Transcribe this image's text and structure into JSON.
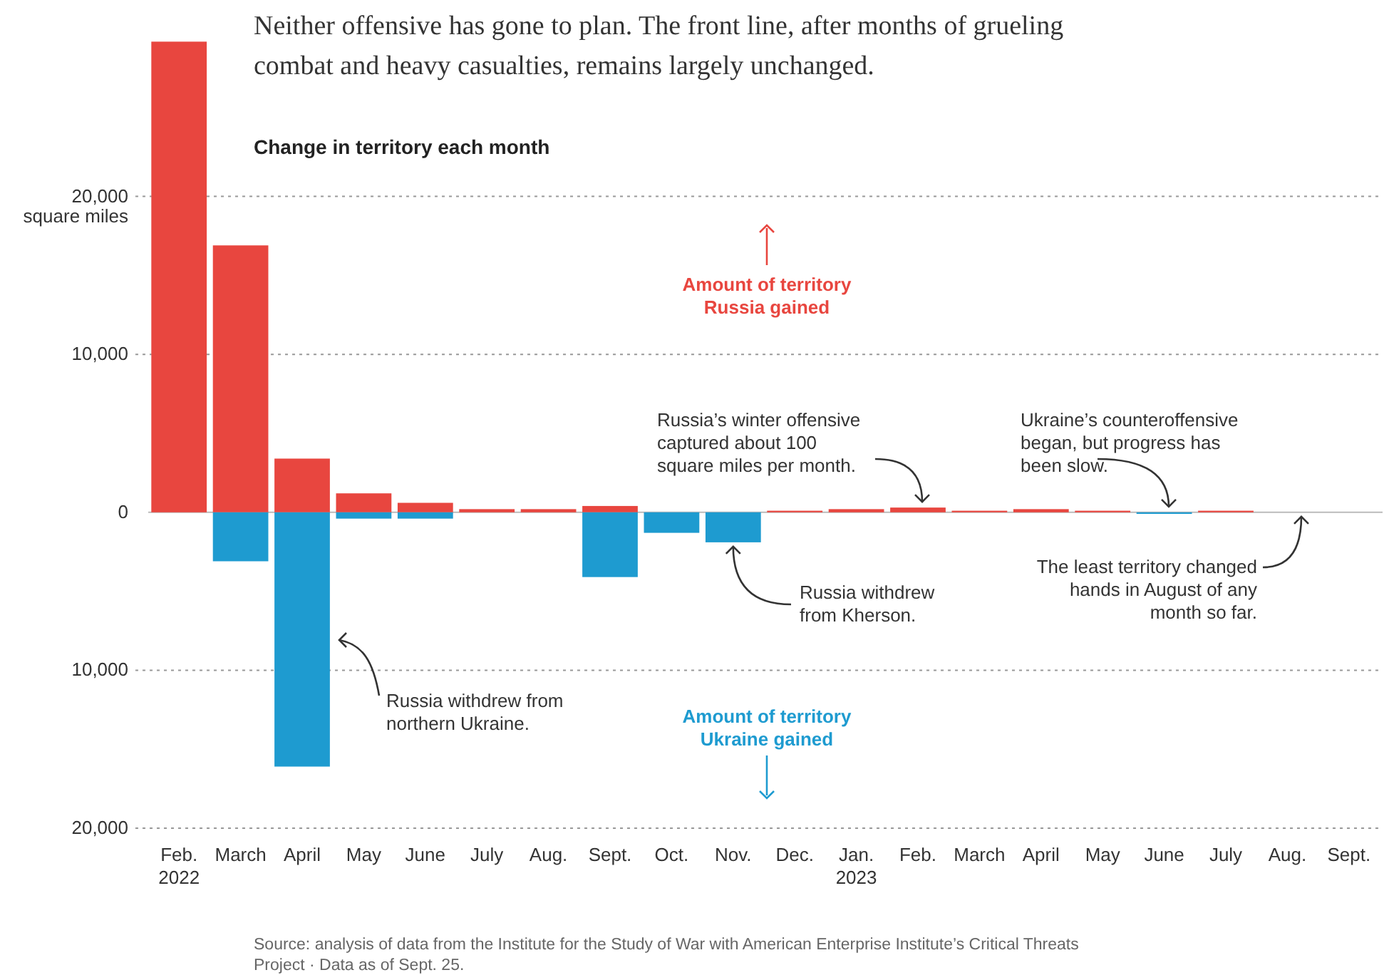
{
  "chart_data": {
    "type": "bar",
    "title": "Neither offensive has gone to plan. The front line, after months of grueling combat and heavy casualties, remains largely unchanged.",
    "subtitle": "Change in territory each month",
    "ylabel": "square miles",
    "categories": [
      "Feb.\n2022",
      "March",
      "April",
      "May",
      "June",
      "July",
      "Aug.",
      "Sept.",
      "Oct.",
      "Nov.",
      "Dec.",
      "Jan.\n2023",
      "Feb.",
      "March",
      "April",
      "May",
      "June",
      "July",
      "Aug.",
      "Sept."
    ],
    "stacked": true,
    "series": [
      {
        "color": "#e8463f",
        "values": [
          29800,
          16900,
          3400,
          1200,
          600,
          200,
          200,
          400,
          0,
          0,
          100,
          200,
          300,
          100,
          200,
          100,
          null,
          100,
          0,
          0
        ]
      },
      {
        "color": "#1e9bd0",
        "values": [
          0,
          -3100,
          -16100,
          -400,
          -400,
          0,
          0,
          -4100,
          -1300,
          -1900,
          0,
          0,
          0,
          0,
          0,
          0,
          -100,
          0,
          0,
          0
        ]
      }
    ],
    "ylim": [
      -20000,
      30000
    ],
    "yticks": [
      {
        "value": -20000,
        "label": "20,000"
      },
      {
        "value": -10000,
        "label": "10,000"
      },
      0,
      {
        "value": 10000,
        "label": "10,000"
      },
      {
        "value": 20000,
        "label": "20,000"
      }
    ],
    "grid": "y",
    "annotations": [
      "Amount of territory Russia gained",
      "Amount of territory Ukraine gained",
      "Russia withdrew from northern Ukraine.",
      {
        "text": "Russia withdrew from Kherson.",
        "x": "Nov.",
        "y": -1900
      },
      {
        "text": "Russia’s winter offensive captured about 100 square miles per month.",
        "y": 300
      },
      {
        "text": "Ukraine’s counteroffensive began, but progress has been slow.",
        "y": -100
      },
      {
        "text": "The least territory changed hands in August of any month so far.",
        "y": 0
      },
      "Source: analysis of data from the Institute for the Study of War with American Enterprise Institute’s Critical Threats Project · Data as of Sept. 25."
    ]
  }
}
